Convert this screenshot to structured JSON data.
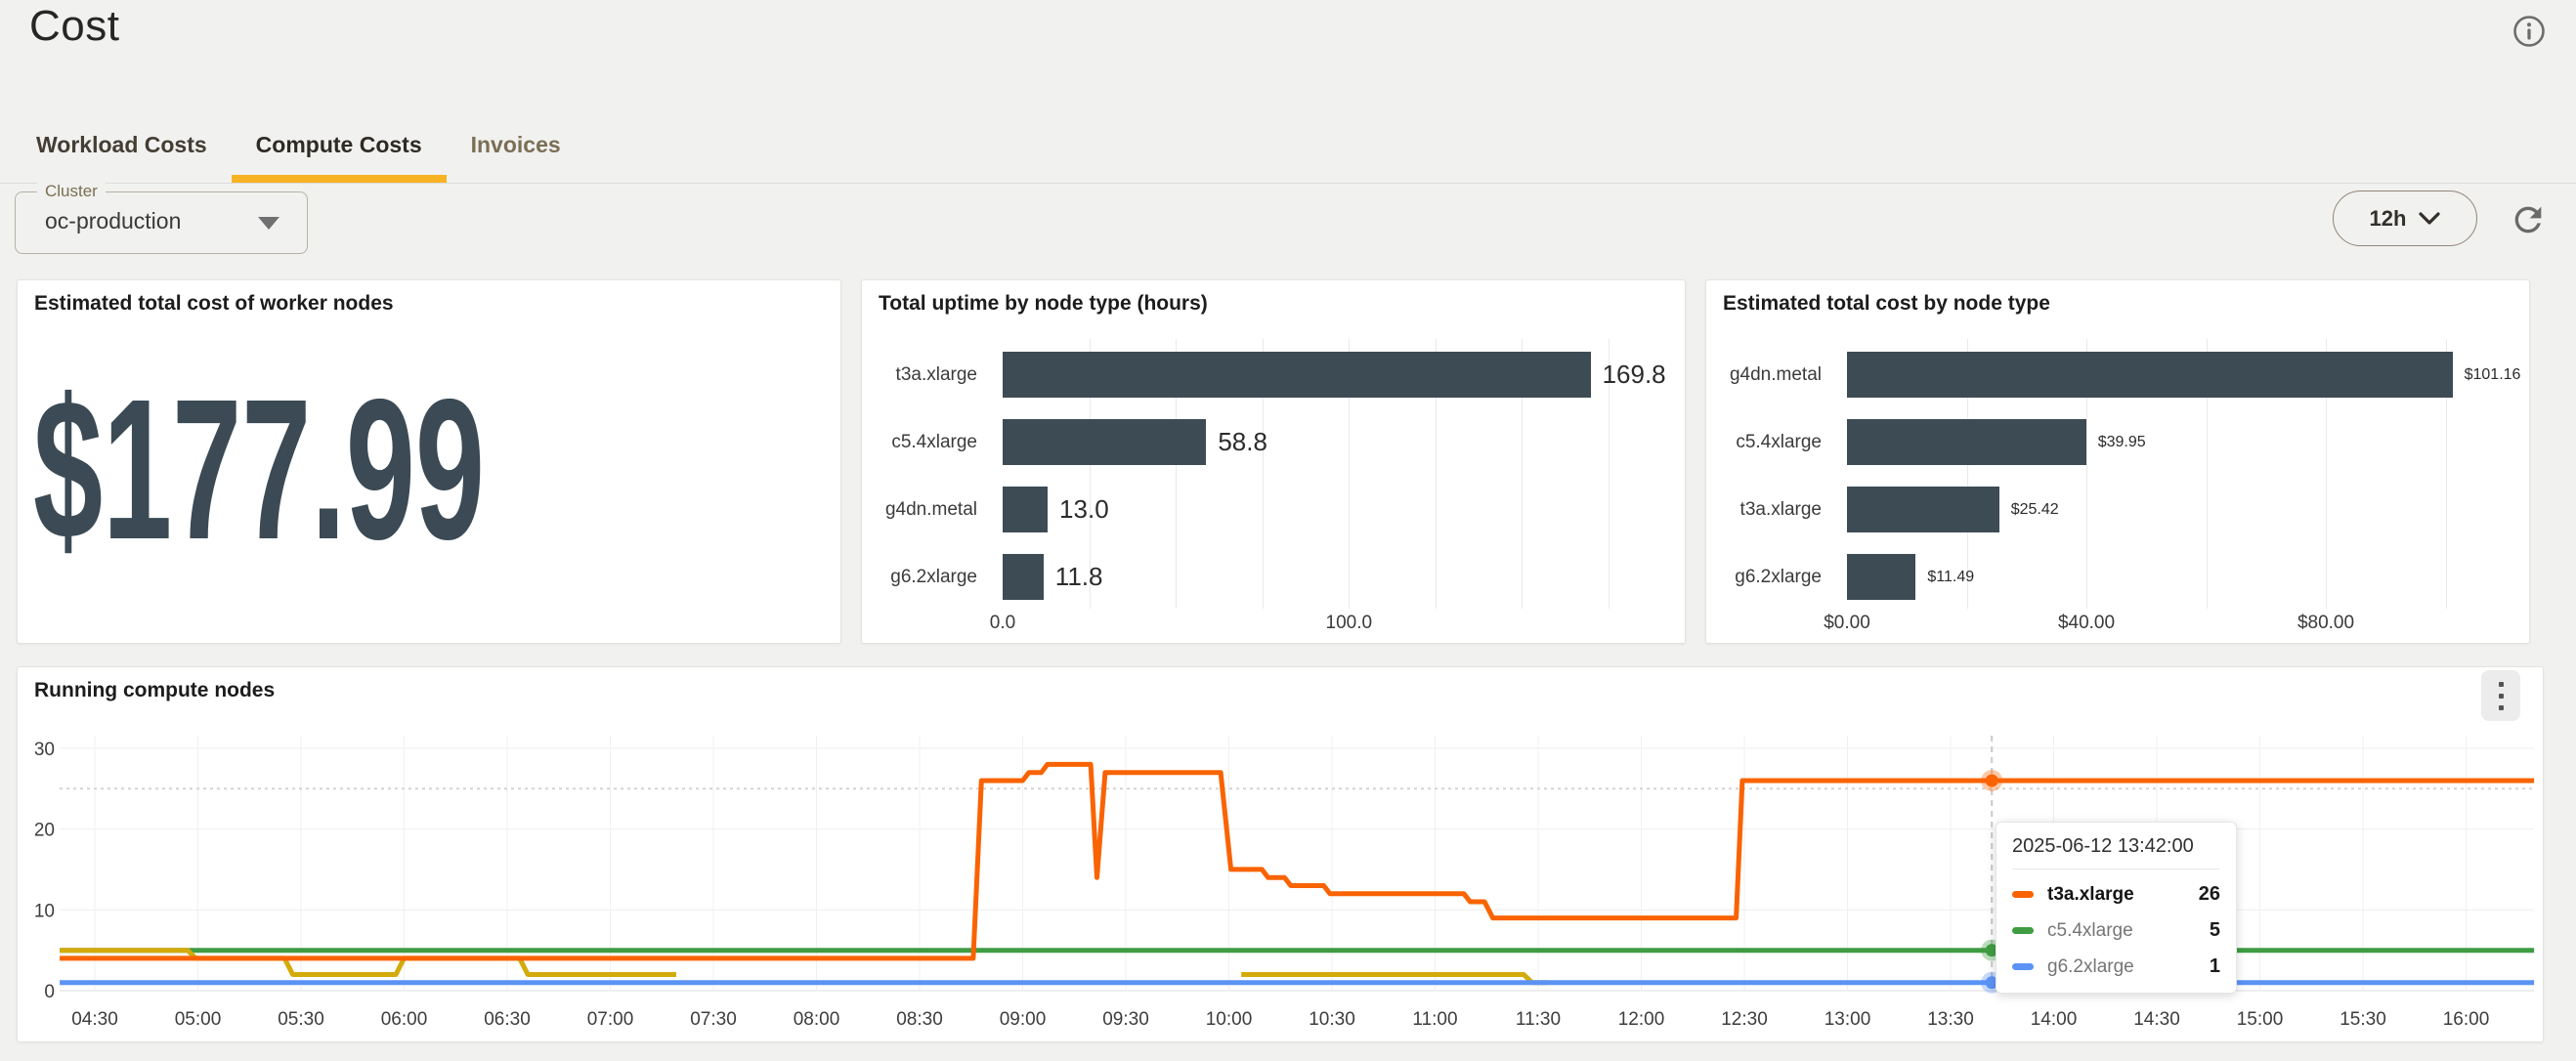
{
  "page": {
    "title": "Cost"
  },
  "header": {
    "info_icon": "info-icon"
  },
  "tabs": [
    {
      "label": "Workload Costs",
      "active": false
    },
    {
      "label": "Compute Costs",
      "active": true
    },
    {
      "label": "Invoices",
      "active": false
    }
  ],
  "filters": {
    "cluster": {
      "label": "Cluster",
      "value": "oc-production"
    }
  },
  "toolbar": {
    "time_range": "12h",
    "refresh_icon": "refresh-icon"
  },
  "theme": {
    "accent_amber": "#f8b324",
    "stat_color": "#3b4a54",
    "bar_color": "#3d4b54",
    "orange": "#f96302",
    "green": "#3f9c42",
    "blue": "#5b93f5",
    "yellow": "#d3ab0a",
    "page_bg": "#f1f1ef",
    "card_border": "#e3e3e1"
  },
  "chart_data": [
    {
      "type": "stat",
      "title": "Estimated total cost of worker nodes",
      "value": "$177.99"
    },
    {
      "type": "bar",
      "orientation": "horizontal",
      "title": "Total uptime by node type (hours)",
      "categories": [
        "t3a.xlarge",
        "c5.4xlarge",
        "g4dn.metal",
        "g6.2xlarge"
      ],
      "values": [
        169.8,
        58.8,
        13.0,
        11.8
      ],
      "value_labels": [
        "169.8",
        "58.8",
        "13.0",
        "11.8"
      ],
      "xlim": [
        0,
        175
      ],
      "grid_step": 25,
      "grid_max": 175,
      "x_ticks": [
        {
          "v": 0,
          "label": "0.0"
        },
        {
          "v": 100,
          "label": "100.0"
        }
      ],
      "bar_color": "#3d4b54",
      "grid": true,
      "legend": "none"
    },
    {
      "type": "bar",
      "orientation": "horizontal",
      "title": "Estimated total cost by node type",
      "categories": [
        "g4dn.metal",
        "c5.4xlarge",
        "t3a.xlarge",
        "g6.2xlarge"
      ],
      "values": [
        101.16,
        39.95,
        25.42,
        11.49
      ],
      "value_labels": [
        "$101.16",
        "$39.95",
        "$25.42",
        "$11.49"
      ],
      "xlim": [
        0,
        120
      ],
      "grid_step": 20,
      "grid_max": 100,
      "x_ticks": [
        {
          "v": 0,
          "label": "$0.00"
        },
        {
          "v": 40,
          "label": "$40.00"
        },
        {
          "v": 80,
          "label": "$80.00"
        }
      ],
      "bar_color": "#3d4b54",
      "grid": true,
      "legend": "none"
    },
    {
      "type": "line",
      "title": "Running compute nodes",
      "ylim": [
        0,
        31
      ],
      "y_ticks": [
        0,
        10,
        20,
        30
      ],
      "reference_line_y": 25,
      "grid": true,
      "legend": "tooltip-only",
      "x_ticks": [
        {
          "t": 4.5,
          "label": "04:30"
        },
        {
          "t": 5.0,
          "label": "05:00"
        },
        {
          "t": 5.5,
          "label": "05:30"
        },
        {
          "t": 6.0,
          "label": "06:00"
        },
        {
          "t": 6.5,
          "label": "06:30"
        },
        {
          "t": 7.0,
          "label": "07:00"
        },
        {
          "t": 7.5,
          "label": "07:30"
        },
        {
          "t": 8.0,
          "label": "08:00"
        },
        {
          "t": 8.5,
          "label": "08:30"
        },
        {
          "t": 9.0,
          "label": "09:00"
        },
        {
          "t": 9.5,
          "label": "09:30"
        },
        {
          "t": 10.0,
          "label": "10:00"
        },
        {
          "t": 10.5,
          "label": "10:30"
        },
        {
          "t": 11.0,
          "label": "11:00"
        },
        {
          "t": 11.5,
          "label": "11:30"
        },
        {
          "t": 12.0,
          "label": "12:00"
        },
        {
          "t": 12.5,
          "label": "12:30"
        },
        {
          "t": 13.0,
          "label": "13:00"
        },
        {
          "t": 13.5,
          "label": "13:30"
        },
        {
          "t": 14.0,
          "label": "14:00"
        },
        {
          "t": 14.5,
          "label": "14:30"
        },
        {
          "t": 15.0,
          "label": "15:00"
        },
        {
          "t": 15.5,
          "label": "15:30"
        },
        {
          "t": 16.0,
          "label": "16:00"
        }
      ],
      "series": [
        {
          "name": "c5.4xlarge",
          "color": "#3f9c42",
          "segments": [
            [
              [
                4.33,
                5
              ],
              [
                16.33,
                5
              ]
            ]
          ]
        },
        {
          "name": "g4dn.metal",
          "color": "#d3ab0a",
          "segments": [
            [
              [
                4.33,
                5
              ],
              [
                4.95,
                5
              ],
              [
                4.99,
                4
              ],
              [
                5.42,
                4
              ],
              [
                5.46,
                2
              ],
              [
                5.96,
                2
              ],
              [
                6.0,
                4
              ],
              [
                6.56,
                4
              ],
              [
                6.6,
                2
              ],
              [
                7.32,
                2
              ]
            ],
            [
              [
                10.06,
                2
              ],
              [
                11.43,
                2
              ],
              [
                11.47,
                1
              ],
              [
                11.55,
                1
              ]
            ]
          ]
        },
        {
          "name": "g6.2xlarge",
          "color": "#5b93f5",
          "segments": [
            [
              [
                4.33,
                1
              ],
              [
                16.33,
                1
              ]
            ]
          ]
        },
        {
          "name": "t3a.xlarge",
          "color": "#f96302",
          "segments": [
            [
              [
                4.33,
                4
              ],
              [
                8.76,
                4
              ],
              [
                8.8,
                26
              ],
              [
                9.0,
                26
              ],
              [
                9.03,
                27
              ],
              [
                9.09,
                27
              ],
              [
                9.12,
                28
              ],
              [
                9.33,
                28
              ],
              [
                9.36,
                14
              ],
              [
                9.4,
                27
              ],
              [
                9.96,
                27
              ],
              [
                10.01,
                15
              ],
              [
                10.16,
                15
              ],
              [
                10.19,
                14
              ],
              [
                10.27,
                14
              ],
              [
                10.3,
                13
              ],
              [
                10.46,
                13
              ],
              [
                10.49,
                12
              ],
              [
                11.14,
                12
              ],
              [
                11.17,
                11
              ],
              [
                11.24,
                11
              ],
              [
                11.28,
                9
              ],
              [
                12.46,
                9
              ],
              [
                12.49,
                26
              ],
              [
                16.33,
                26
              ]
            ]
          ]
        }
      ],
      "crosshair": {
        "t": 13.7,
        "points": [
          {
            "series": "t3a.xlarge",
            "v": 26
          },
          {
            "series": "c5.4xlarge",
            "v": 5
          },
          {
            "series": "g6.2xlarge",
            "v": 1
          }
        ]
      },
      "tooltip": {
        "timestamp": "2025-06-12 13:42:00",
        "rows": [
          {
            "series": "t3a.xlarge",
            "value": "26",
            "color": "#f96302",
            "emphasis": true
          },
          {
            "series": "c5.4xlarge",
            "value": "5",
            "color": "#3f9c42",
            "emphasis": false
          },
          {
            "series": "g6.2xlarge",
            "value": "1",
            "color": "#5b93f5",
            "emphasis": false
          }
        ]
      }
    }
  ]
}
